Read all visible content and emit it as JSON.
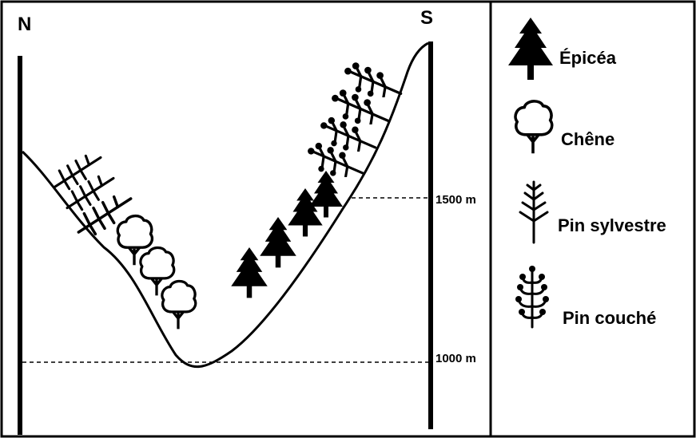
{
  "orientation": {
    "north": "N",
    "south": "S"
  },
  "altitudes": {
    "high": "1500 m",
    "low": "1000 m"
  },
  "legend": {
    "items": [
      {
        "icon": "spruce-icon",
        "label": "Épicéa"
      },
      {
        "icon": "oak-icon",
        "label": "Chêne"
      },
      {
        "icon": "scots-pine-icon",
        "label": "Pin sylvestre"
      },
      {
        "icon": "dwarf-pine-icon",
        "label": "Pin couché"
      }
    ]
  },
  "colors": {
    "ink": "#000000",
    "background": "#ffffff"
  }
}
